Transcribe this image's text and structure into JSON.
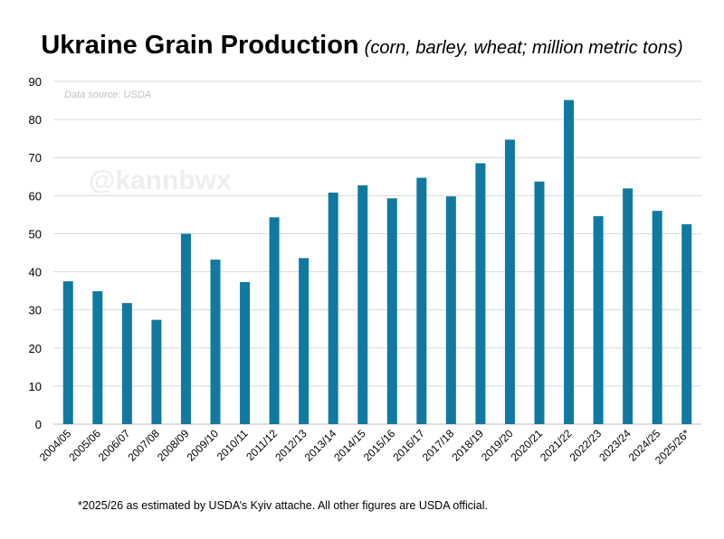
{
  "header": {
    "title": "Ukraine Grain Production",
    "subtitle": "(corn, barley, wheat; million metric tons)"
  },
  "source_note": "Data source: USDA",
  "watermark": "@kannbwx",
  "footnote": "*2025/26 as estimated by USDA’s Kyiv attache. All other figures are USDA official.",
  "colors": {
    "bar": "#1079a0",
    "grid": "#d9d9d9",
    "axis": "#000000",
    "source_note": "#bfbfbf",
    "watermark": "#eeeeee"
  },
  "chart_data": {
    "type": "bar",
    "title": "Ukraine Grain Production",
    "subtitle": "(corn, barley, wheat; million metric tons)",
    "xlabel": "",
    "ylabel": "",
    "ylim": [
      0,
      90
    ],
    "yticks": [
      0,
      10,
      20,
      30,
      40,
      50,
      60,
      70,
      80,
      90
    ],
    "grid": true,
    "categories": [
      "2004/05",
      "2005/06",
      "2006/07",
      "2007/08",
      "2008/09",
      "2009/10",
      "2010/11",
      "2011/12",
      "2012/13",
      "2013/14",
      "2014/15",
      "2015/16",
      "2016/17",
      "2017/18",
      "2018/19",
      "2019/20",
      "2020/21",
      "2021/22",
      "2022/23",
      "2023/24",
      "2024/25",
      "2025/26*"
    ],
    "values": [
      37.5,
      34.9,
      31.8,
      27.4,
      50.0,
      43.2,
      37.3,
      54.3,
      43.6,
      60.8,
      62.7,
      59.3,
      64.7,
      59.8,
      68.5,
      74.7,
      63.7,
      85.1,
      54.6,
      61.9,
      56.0,
      52.5
    ]
  }
}
